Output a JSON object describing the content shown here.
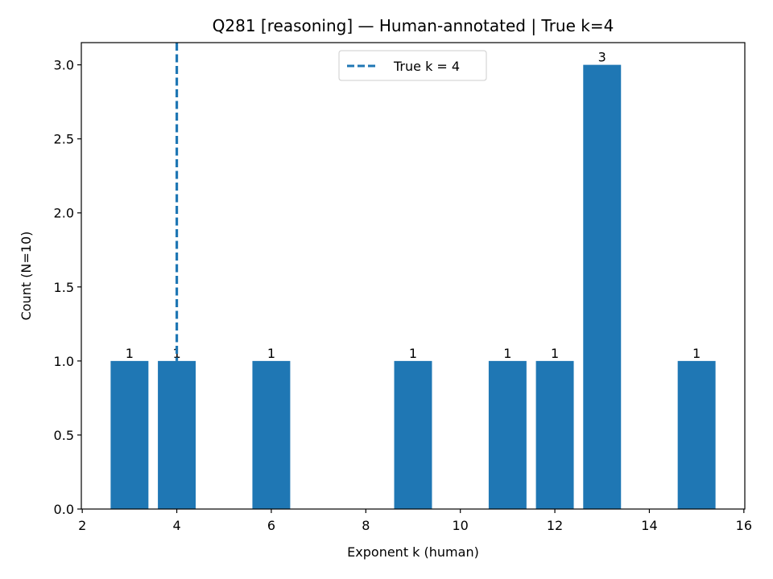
{
  "chart_data": {
    "type": "bar",
    "title": "Q281 [reasoning] — Human-annotated | True k=4",
    "xlabel": "Exponent k (human)",
    "ylabel": "Count (N=10)",
    "x": [
      3,
      4,
      6,
      9,
      11,
      12,
      13,
      15
    ],
    "values": [
      1,
      1,
      1,
      1,
      1,
      1,
      3,
      1
    ],
    "bar_labels": [
      "1",
      "1",
      "1",
      "1",
      "1",
      "1",
      "3",
      "1"
    ],
    "xlim": [
      1.98,
      16.02
    ],
    "ylim": [
      0,
      3.15
    ],
    "xticks": [
      2,
      4,
      6,
      8,
      10,
      12,
      14,
      16
    ],
    "xtick_labels": [
      "2",
      "4",
      "6",
      "8",
      "10",
      "12",
      "14",
      "16"
    ],
    "yticks": [
      0,
      0.5,
      1,
      1.5,
      2,
      2.5,
      3
    ],
    "ytick_labels": [
      "0.0",
      "0.5",
      "1.0",
      "1.5",
      "2.0",
      "2.5",
      "3.0"
    ],
    "reference_line": {
      "x": 4,
      "label": "True k = 4",
      "style": "dashed"
    },
    "legend": {
      "position": "top-center",
      "entries": [
        "True k = 4"
      ]
    },
    "grid": false,
    "colors": {
      "bar": "#1f77b4",
      "reference_line": "#1f77b4"
    }
  }
}
